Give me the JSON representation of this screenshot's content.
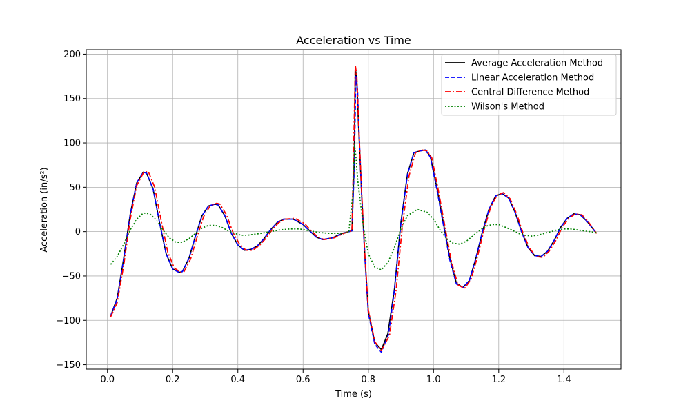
{
  "chart_data": {
    "type": "line",
    "title": "Acceleration vs Time",
    "xlabel": "Time (s)",
    "ylabel": "Acceleration (in/s²)",
    "xlim": [
      -0.065,
      1.575
    ],
    "ylim": [
      -155,
      205
    ],
    "xticks": [
      0.0,
      0.2,
      0.4,
      0.6,
      0.8,
      1.0,
      1.2,
      1.4
    ],
    "xtick_labels": [
      "0.0",
      "0.2",
      "0.4",
      "0.6",
      "0.8",
      "1.0",
      "1.2",
      "1.4"
    ],
    "yticks": [
      -150,
      -100,
      -50,
      0,
      50,
      100,
      150,
      200
    ],
    "ytick_labels": [
      "−150",
      "−100",
      "−50",
      "0",
      "50",
      "100",
      "150",
      "200"
    ],
    "grid": true,
    "legend_position": "top-right",
    "series": [
      {
        "name": "Average Acceleration Method",
        "color": "#000000",
        "dash": "solid",
        "x": [
          0.01,
          0.03,
          0.05,
          0.07,
          0.09,
          0.11,
          0.12,
          0.14,
          0.16,
          0.18,
          0.2,
          0.22,
          0.23,
          0.25,
          0.27,
          0.29,
          0.31,
          0.33,
          0.34,
          0.36,
          0.38,
          0.4,
          0.42,
          0.44,
          0.46,
          0.48,
          0.5,
          0.52,
          0.54,
          0.57,
          0.6,
          0.62,
          0.64,
          0.66,
          0.69,
          0.72,
          0.75,
          0.757,
          0.76,
          0.765,
          0.77,
          0.78,
          0.79,
          0.8,
          0.82,
          0.84,
          0.86,
          0.88,
          0.9,
          0.92,
          0.94,
          0.96,
          0.975,
          0.99,
          1.01,
          1.03,
          1.05,
          1.07,
          1.09,
          1.11,
          1.13,
          1.15,
          1.17,
          1.19,
          1.21,
          1.23,
          1.25,
          1.27,
          1.29,
          1.31,
          1.33,
          1.35,
          1.37,
          1.39,
          1.41,
          1.43,
          1.45,
          1.47,
          1.5
        ],
        "y": [
          -95,
          -75,
          -30,
          20,
          55,
          67,
          66,
          48,
          10,
          -25,
          -42,
          -46,
          -45,
          -30,
          -5,
          18,
          29,
          31,
          30,
          18,
          -2,
          -15,
          -21,
          -20,
          -16,
          -8,
          2,
          10,
          14,
          14,
          8,
          1,
          -6,
          -9,
          -7,
          -2,
          1,
          80,
          185,
          170,
          120,
          40,
          -30,
          -90,
          -125,
          -133,
          -115,
          -65,
          10,
          65,
          89,
          91,
          92,
          85,
          50,
          10,
          -30,
          -58,
          -63,
          -55,
          -30,
          0,
          25,
          40,
          43,
          38,
          22,
          0,
          -18,
          -27,
          -28,
          -22,
          -10,
          5,
          15,
          20,
          19,
          12,
          -2
        ]
      },
      {
        "name": "Linear Acceleration Method",
        "color": "#0000ff",
        "dash": "dashed",
        "x": [
          0.01,
          0.03,
          0.05,
          0.07,
          0.09,
          0.11,
          0.12,
          0.14,
          0.16,
          0.18,
          0.2,
          0.22,
          0.23,
          0.25,
          0.27,
          0.29,
          0.31,
          0.33,
          0.34,
          0.36,
          0.38,
          0.4,
          0.42,
          0.44,
          0.46,
          0.48,
          0.5,
          0.52,
          0.54,
          0.57,
          0.6,
          0.62,
          0.64,
          0.66,
          0.69,
          0.72,
          0.75,
          0.757,
          0.762,
          0.767,
          0.772,
          0.78,
          0.79,
          0.8,
          0.82,
          0.84,
          0.862,
          0.88,
          0.9,
          0.92,
          0.94,
          0.96,
          0.975,
          0.99,
          1.01,
          1.03,
          1.05,
          1.07,
          1.09,
          1.11,
          1.13,
          1.15,
          1.17,
          1.19,
          1.21,
          1.23,
          1.25,
          1.27,
          1.29,
          1.31,
          1.33,
          1.35,
          1.37,
          1.39,
          1.41,
          1.43,
          1.45,
          1.47,
          1.5
        ],
        "y": [
          -95,
          -76,
          -31,
          19,
          55,
          67,
          66,
          48,
          10,
          -25,
          -42,
          -46,
          -45,
          -30,
          -5,
          18,
          29,
          31,
          30,
          18,
          -2,
          -15,
          -21,
          -20,
          -16,
          -8,
          2,
          10,
          14,
          14,
          8,
          1,
          -6,
          -9,
          -7,
          -2,
          1,
          70,
          175,
          160,
          110,
          38,
          -32,
          -92,
          -127,
          -136,
          -116,
          -66,
          9,
          64,
          89,
          91,
          92,
          84,
          48,
          8,
          -32,
          -59,
          -63,
          -55,
          -30,
          0,
          25,
          40,
          43,
          38,
          22,
          0,
          -18,
          -27,
          -28,
          -22,
          -10,
          5,
          15,
          20,
          19,
          12,
          -2
        ]
      },
      {
        "name": "Central Difference Method",
        "color": "#ff0000",
        "dash": "dashdot",
        "x": [
          0.01,
          0.03,
          0.05,
          0.07,
          0.09,
          0.11,
          0.125,
          0.145,
          0.165,
          0.185,
          0.205,
          0.225,
          0.235,
          0.255,
          0.275,
          0.295,
          0.315,
          0.335,
          0.345,
          0.365,
          0.385,
          0.405,
          0.425,
          0.445,
          0.465,
          0.485,
          0.505,
          0.525,
          0.545,
          0.575,
          0.605,
          0.625,
          0.645,
          0.665,
          0.695,
          0.725,
          0.75,
          0.755,
          0.76,
          0.765,
          0.77,
          0.78,
          0.79,
          0.8,
          0.82,
          0.84,
          0.865,
          0.885,
          0.905,
          0.925,
          0.945,
          0.965,
          0.98,
          0.995,
          1.015,
          1.035,
          1.055,
          1.075,
          1.095,
          1.115,
          1.135,
          1.155,
          1.175,
          1.195,
          1.215,
          1.235,
          1.255,
          1.275,
          1.295,
          1.315,
          1.335,
          1.355,
          1.375,
          1.395,
          1.415,
          1.435,
          1.455,
          1.475,
          1.5
        ],
        "y": [
          -96,
          -80,
          -38,
          14,
          52,
          66,
          68,
          50,
          12,
          -23,
          -41,
          -46,
          -45,
          -31,
          -6,
          17,
          29,
          32,
          31,
          19,
          -1,
          -14,
          -21,
          -21,
          -16,
          -8,
          2,
          10,
          14,
          15,
          9,
          1,
          -6,
          -9,
          -7,
          -2,
          1,
          90,
          188,
          175,
          125,
          42,
          -28,
          -88,
          -124,
          -134,
          -117,
          -67,
          8,
          63,
          89,
          92,
          91,
          83,
          46,
          6,
          -34,
          -60,
          -64,
          -54,
          -28,
          2,
          27,
          41,
          44,
          37,
          20,
          -2,
          -19,
          -28,
          -29,
          -22,
          -10,
          5,
          15,
          20,
          19,
          11,
          -2
        ]
      },
      {
        "name": "Wilson's Method",
        "color": "#008000",
        "dash": "dotted",
        "x": [
          0.01,
          0.03,
          0.05,
          0.07,
          0.09,
          0.11,
          0.13,
          0.15,
          0.17,
          0.19,
          0.21,
          0.23,
          0.25,
          0.27,
          0.29,
          0.31,
          0.33,
          0.35,
          0.37,
          0.39,
          0.41,
          0.43,
          0.45,
          0.47,
          0.5,
          0.53,
          0.56,
          0.59,
          0.62,
          0.65,
          0.68,
          0.71,
          0.74,
          0.752,
          0.758,
          0.762,
          0.767,
          0.775,
          0.785,
          0.8,
          0.82,
          0.84,
          0.86,
          0.88,
          0.9,
          0.92,
          0.95,
          0.98,
          1.0,
          1.02,
          1.04,
          1.06,
          1.08,
          1.1,
          1.12,
          1.14,
          1.16,
          1.18,
          1.2,
          1.22,
          1.24,
          1.26,
          1.28,
          1.3,
          1.32,
          1.34,
          1.36,
          1.38,
          1.4,
          1.42,
          1.44,
          1.46,
          1.48,
          1.5
        ],
        "y": [
          -37,
          -28,
          -14,
          2,
          14,
          21,
          20,
          13,
          2,
          -7,
          -12,
          -12,
          -8,
          -2,
          4,
          7,
          7,
          5,
          1,
          -2,
          -4,
          -4,
          -3,
          -2,
          0,
          2,
          3,
          3,
          1,
          -1,
          -2,
          -2,
          -1,
          40,
          98,
          85,
          60,
          35,
          5,
          -25,
          -40,
          -43,
          -35,
          -18,
          3,
          18,
          25,
          22,
          14,
          2,
          -8,
          -13,
          -14,
          -11,
          -5,
          1,
          6,
          8,
          8,
          5,
          2,
          -2,
          -4,
          -5,
          -4,
          -2,
          0,
          2,
          3,
          3,
          2,
          1,
          0,
          -1
        ]
      }
    ]
  }
}
